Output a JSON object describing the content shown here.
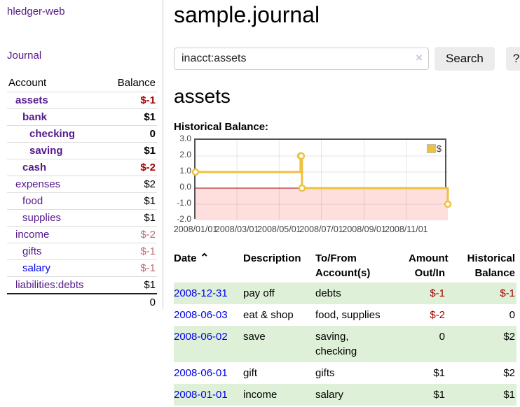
{
  "header": {
    "title": "sample.journal"
  },
  "search": {
    "value": "inacct:assets",
    "clear_icon": "×",
    "button_label": "Search",
    "help_label": "?"
  },
  "account": {
    "title": "assets"
  },
  "sidebar": {
    "brand": "hledger-web",
    "journal_label": "Journal",
    "accounts_table": {
      "headers": [
        "Account",
        "Balance"
      ],
      "rows": [
        {
          "name": "assets",
          "depth": 1,
          "bold": true,
          "balance": "$-1",
          "neg": "strong"
        },
        {
          "name": "bank",
          "depth": 2,
          "bold": true,
          "balance": "$1"
        },
        {
          "name": "checking",
          "depth": 3,
          "bold": true,
          "balance": "0"
        },
        {
          "name": "saving",
          "depth": 3,
          "bold": true,
          "balance": "$1"
        },
        {
          "name": "cash",
          "depth": 2,
          "bold": true,
          "balance": "$-2",
          "neg": "strong"
        },
        {
          "name": "expenses",
          "depth": 1,
          "bold": false,
          "balance": "$2"
        },
        {
          "name": "food",
          "depth": 2,
          "bold": false,
          "balance": "$1"
        },
        {
          "name": "supplies",
          "depth": 2,
          "bold": false,
          "balance": "$1"
        },
        {
          "name": "income",
          "depth": 1,
          "bold": false,
          "balance": "$-2",
          "neg": "soft"
        },
        {
          "name": "gifts",
          "depth": 2,
          "bold": false,
          "balance": "$-1",
          "neg": "soft"
        },
        {
          "name": "salary",
          "depth": 2,
          "bold": false,
          "balance": "$-1",
          "neg": "soft",
          "link_blue": true
        },
        {
          "name": "liabilities:debts",
          "depth": 1,
          "bold": false,
          "balance": "$1"
        }
      ],
      "total": "0"
    }
  },
  "chart_data": {
    "type": "line",
    "step": true,
    "title": "Historical Balance:",
    "legend": [
      {
        "label": "$",
        "color": "#edc240"
      }
    ],
    "legend_position": "top-right",
    "grid": true,
    "ylim": [
      -2,
      3
    ],
    "y_ticks": [
      3.0,
      2.0,
      1.0,
      0.0,
      -1.0,
      -2.0
    ],
    "x_range_days": [
      0,
      365
    ],
    "x_ticks": [
      {
        "day": 0,
        "label": "2008/01/01"
      },
      {
        "day": 60,
        "label": "2008/03/01"
      },
      {
        "day": 121,
        "label": "2008/05/01"
      },
      {
        "day": 182,
        "label": "2008/07/01"
      },
      {
        "day": 244,
        "label": "2008/09/01"
      },
      {
        "day": 305,
        "label": "2008/11/01"
      }
    ],
    "series": [
      {
        "name": "$",
        "color": "#edc240",
        "points": [
          {
            "date": "2008-01-01",
            "day": 0,
            "value": 1
          },
          {
            "date": "2008-06-01",
            "day": 152,
            "value": 2
          },
          {
            "date": "2008-06-02",
            "day": 153,
            "value": 2
          },
          {
            "date": "2008-06-03",
            "day": 154,
            "value": 0
          },
          {
            "date": "2008-12-31",
            "day": 365,
            "value": -1
          }
        ]
      }
    ],
    "negative_region_color": "#ffdede",
    "zero_line_color": "#a40000"
  },
  "register": {
    "headers": [
      {
        "label": "Date",
        "sort_icon": "⌃",
        "align": "left"
      },
      {
        "label": "Description",
        "align": "left"
      },
      {
        "label": "To/From Account(s)",
        "align": "left"
      },
      {
        "label": "Amount Out/In",
        "align": "right"
      },
      {
        "label": "Historical Balance",
        "align": "right"
      }
    ],
    "rows": [
      {
        "date": "2008-12-31",
        "description": "pay off",
        "accounts": "debts",
        "amount": "$-1",
        "amount_neg": true,
        "balance": "$-1",
        "balance_neg": true,
        "shaded": true
      },
      {
        "date": "2008-06-03",
        "description": "eat & shop",
        "accounts": "food, supplies",
        "amount": "$-2",
        "amount_neg": true,
        "balance": "0",
        "balance_neg": false,
        "shaded": false
      },
      {
        "date": "2008-06-02",
        "description": "save",
        "accounts": "saving, checking",
        "amount": "0",
        "amount_neg": false,
        "balance": "$2",
        "balance_neg": false,
        "shaded": true
      },
      {
        "date": "2008-06-01",
        "description": "gift",
        "accounts": "gifts",
        "amount": "$1",
        "amount_neg": false,
        "balance": "$2",
        "balance_neg": false,
        "shaded": false
      },
      {
        "date": "2008-01-01",
        "description": "income",
        "accounts": "salary",
        "amount": "$1",
        "amount_neg": false,
        "balance": "$1",
        "balance_neg": false,
        "shaded": true
      }
    ]
  },
  "colors": {
    "accent_purple": "#551a8b",
    "link_blue": "#0000ee",
    "negative_strong": "#a40000",
    "negative_soft": "#bd6a75",
    "row_green": "#dff0d8",
    "chart_line": "#edc240",
    "chart_negative_bg": "#ffdede",
    "chart_zero_line": "#a40000"
  }
}
